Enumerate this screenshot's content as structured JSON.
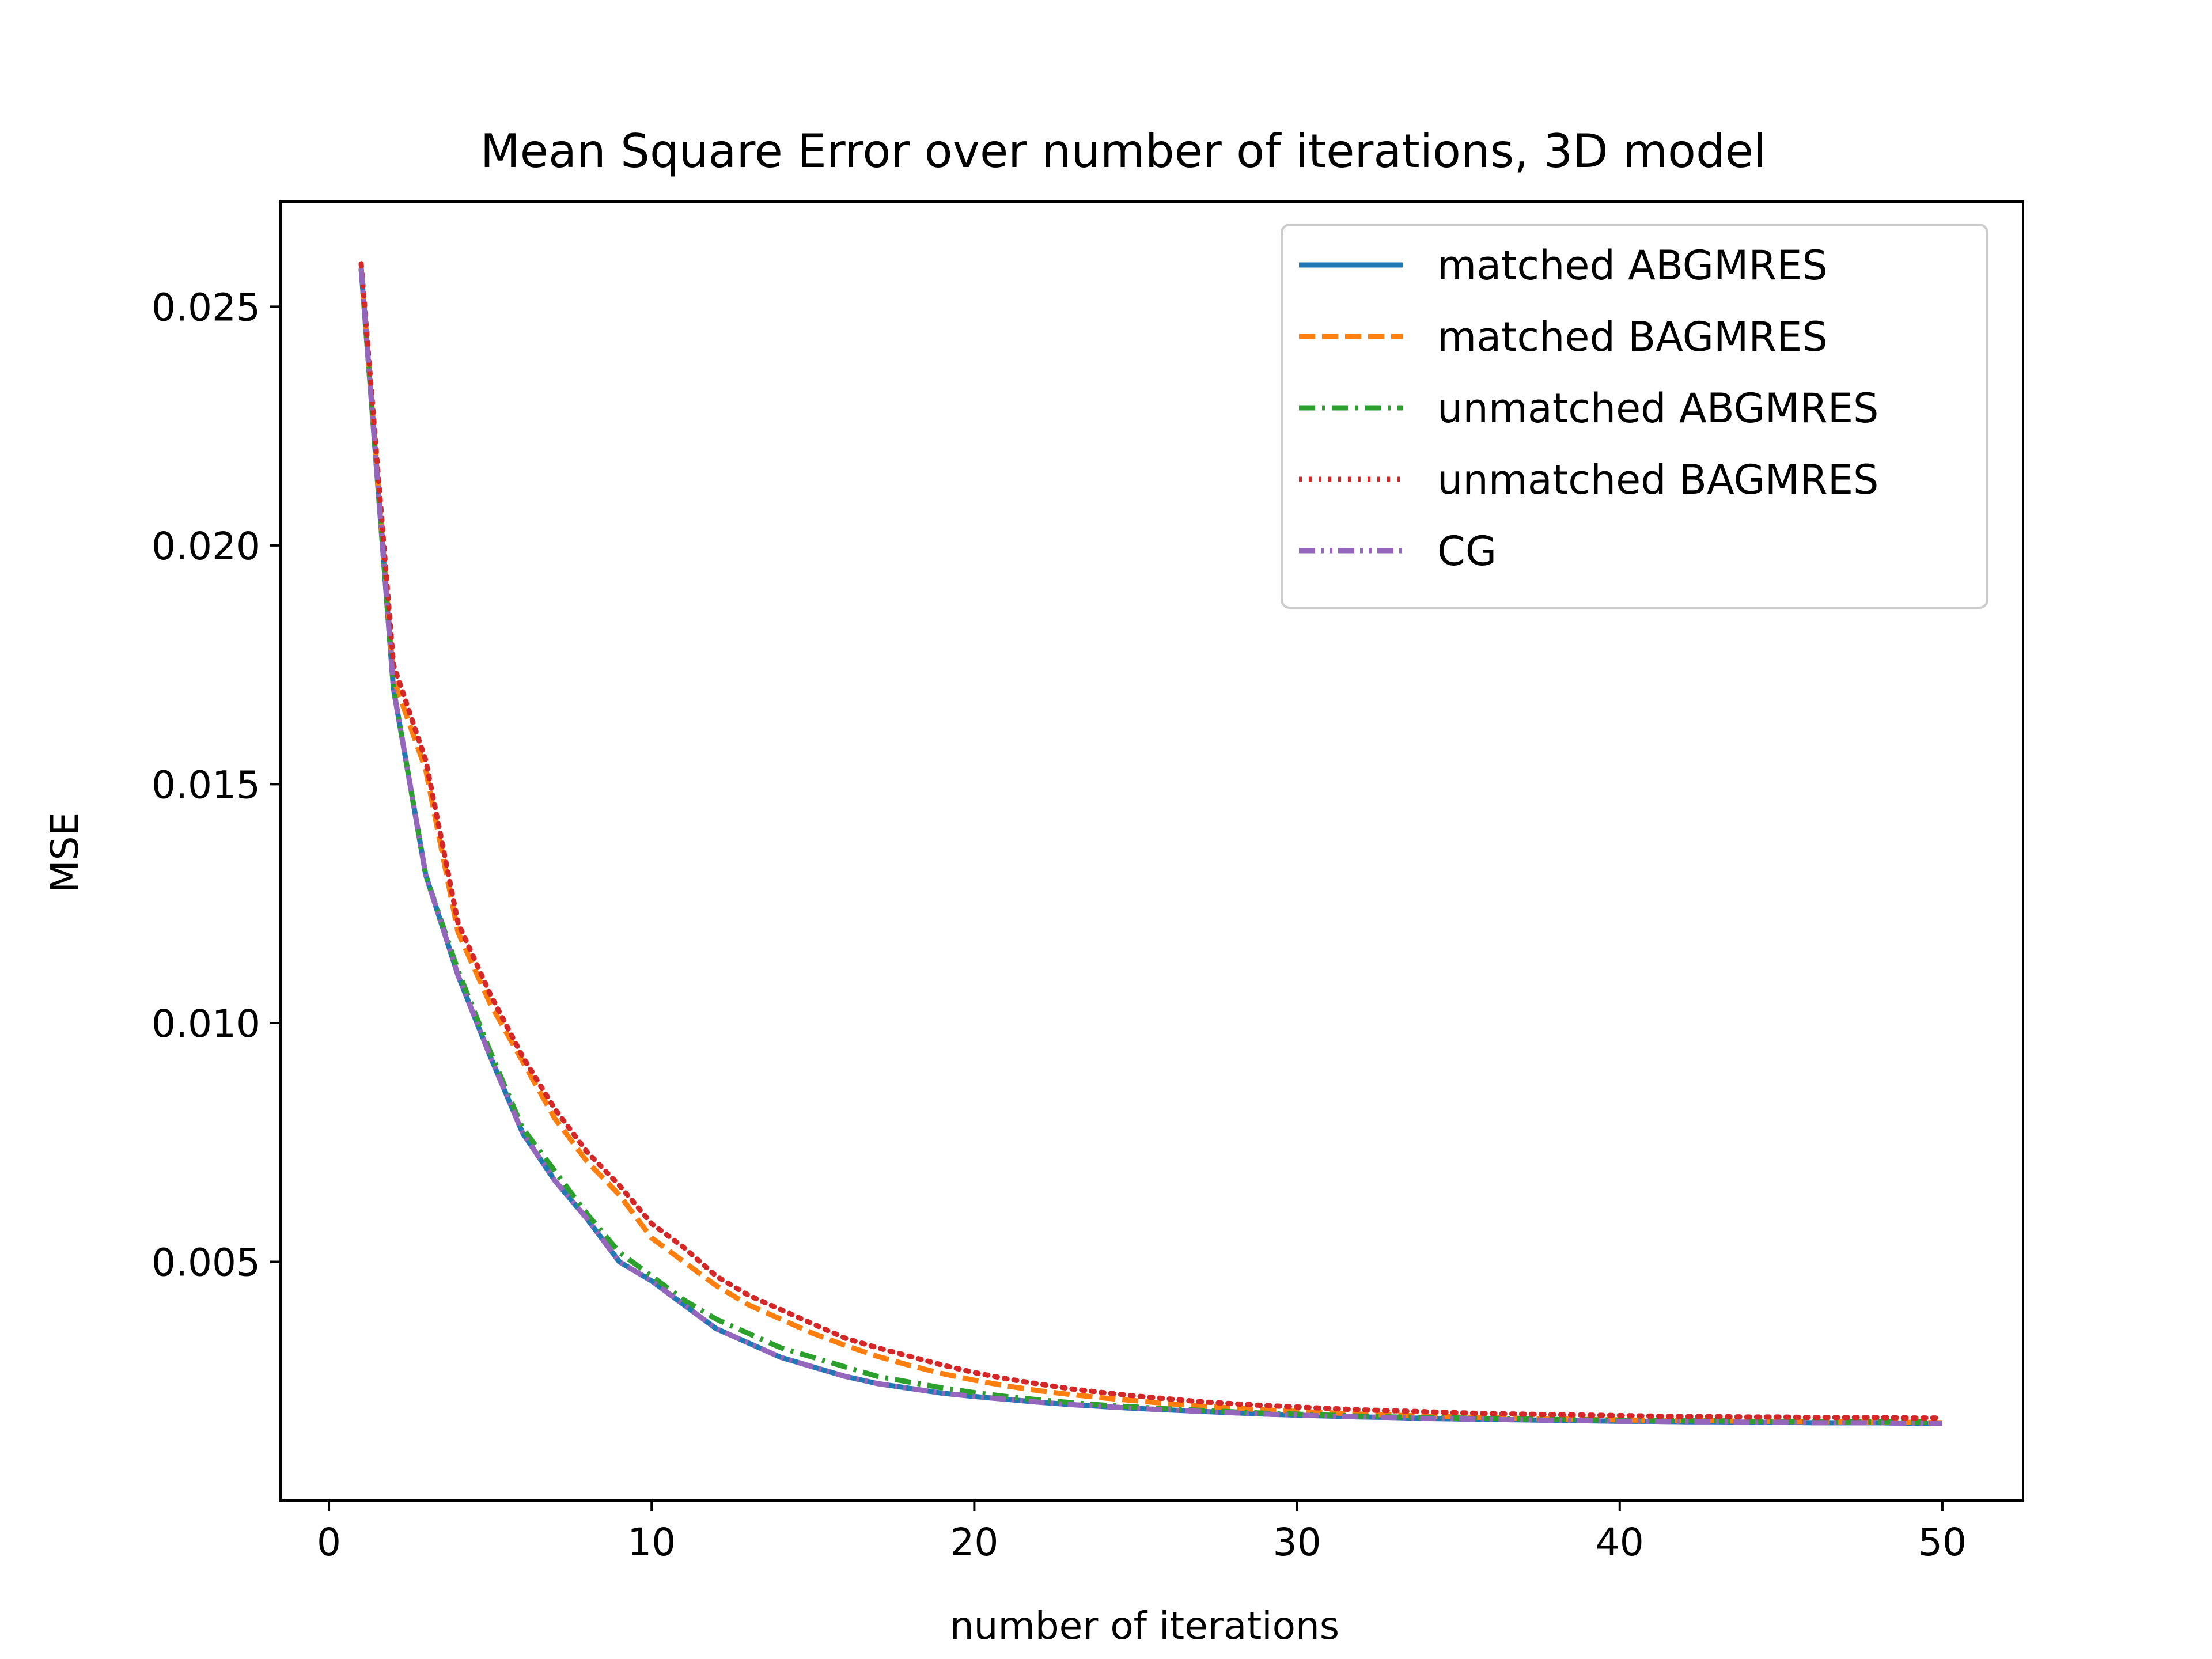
{
  "chart_data": {
    "type": "line",
    "title": "Mean Square Error over number of iterations, 3D model",
    "xlabel": "number of iterations",
    "ylabel": "MSE",
    "xlim": [
      -1.5,
      52.5
    ],
    "ylim": [
      0.0,
      0.0272
    ],
    "xticks": [
      0,
      10,
      20,
      30,
      40,
      50
    ],
    "xtick_labels": [
      "0",
      "10",
      "20",
      "30",
      "40",
      "50"
    ],
    "yticks": [
      0.005,
      0.01,
      0.015,
      0.02,
      0.025
    ],
    "ytick_labels": [
      "0.005",
      "0.010",
      "0.015",
      "0.020",
      "0.025"
    ],
    "grid": false,
    "legend_position": "top-right",
    "x": [
      1,
      2,
      3,
      4,
      5,
      6,
      7,
      8,
      9,
      10,
      11,
      12,
      13,
      14,
      15,
      16,
      17,
      18,
      19,
      20,
      21,
      22,
      23,
      24,
      25,
      26,
      27,
      28,
      29,
      30,
      31,
      32,
      33,
      34,
      35,
      36,
      37,
      38,
      39,
      40,
      41,
      42,
      43,
      44,
      45,
      46,
      47,
      48,
      49,
      50
    ],
    "series": [
      {
        "name": "matched ABGMRES",
        "color": "#1f77b4",
        "dash": "solid",
        "values": [
          0.0258,
          0.017,
          0.0131,
          0.011,
          0.0093,
          0.0077,
          0.0067,
          0.0059,
          0.005,
          0.0046,
          0.0041,
          0.0036,
          0.0033,
          0.003,
          0.0028,
          0.0026,
          0.00245,
          0.00235,
          0.00225,
          0.00218,
          0.00212,
          0.00206,
          0.00201,
          0.00197,
          0.00193,
          0.0019,
          0.00187,
          0.00184,
          0.00181,
          0.00179,
          0.00177,
          0.00175,
          0.00174,
          0.00172,
          0.00171,
          0.0017,
          0.00169,
          0.00168,
          0.00167,
          0.00166,
          0.00166,
          0.00165,
          0.00165,
          0.00164,
          0.00164,
          0.00163,
          0.00163,
          0.00163,
          0.00162,
          0.00162
        ]
      },
      {
        "name": "matched BAGMRES",
        "color": "#ff7f0e",
        "dash": "dashed",
        "values": [
          0.0258,
          0.0172,
          0.0153,
          0.0119,
          0.0104,
          0.0092,
          0.008,
          0.0071,
          0.0064,
          0.0055,
          0.005,
          0.0045,
          0.0041,
          0.0038,
          0.0035,
          0.00325,
          0.00302,
          0.00283,
          0.00266,
          0.00252,
          0.0024,
          0.0023,
          0.00222,
          0.00215,
          0.00209,
          0.00203,
          0.00198,
          0.00194,
          0.0019,
          0.00187,
          0.00184,
          0.00181,
          0.00179,
          0.00177,
          0.00175,
          0.00174,
          0.00172,
          0.00171,
          0.0017,
          0.00169,
          0.00168,
          0.00167,
          0.00167,
          0.00166,
          0.00166,
          0.00165,
          0.00165,
          0.00164,
          0.00164,
          0.00163
        ]
      },
      {
        "name": "unmatched ABGMRES",
        "color": "#2ca02c",
        "dash": "dashdot",
        "values": [
          0.0258,
          0.017,
          0.0131,
          0.0111,
          0.0094,
          0.0078,
          0.0069,
          0.006,
          0.0052,
          0.0047,
          0.0042,
          0.0038,
          0.0035,
          0.0032,
          0.003,
          0.0028,
          0.0026,
          0.00248,
          0.00236,
          0.00226,
          0.00218,
          0.00211,
          0.00205,
          0.002,
          0.00196,
          0.00192,
          0.00189,
          0.00186,
          0.00183,
          0.00181,
          0.00179,
          0.00177,
          0.00175,
          0.00174,
          0.00173,
          0.00172,
          0.00171,
          0.0017,
          0.00169,
          0.00168,
          0.00168,
          0.00167,
          0.00167,
          0.00166,
          0.00166,
          0.00166,
          0.00165,
          0.00165,
          0.00165,
          0.00164
        ]
      },
      {
        "name": "unmatched BAGMRES",
        "color": "#d62728",
        "dash": "dotted",
        "values": [
          0.0259,
          0.0175,
          0.0155,
          0.0121,
          0.0106,
          0.0093,
          0.0082,
          0.0073,
          0.0066,
          0.0058,
          0.0053,
          0.0047,
          0.0043,
          0.004,
          0.0037,
          0.0034,
          0.0032,
          0.00302,
          0.00284,
          0.00268,
          0.00255,
          0.00244,
          0.00234,
          0.00226,
          0.00219,
          0.00213,
          0.00207,
          0.00203,
          0.00199,
          0.00196,
          0.00193,
          0.0019,
          0.00188,
          0.00186,
          0.00184,
          0.00182,
          0.00181,
          0.0018,
          0.00179,
          0.00178,
          0.00177,
          0.00176,
          0.00176,
          0.00175,
          0.00175,
          0.00174,
          0.00174,
          0.00174,
          0.00173,
          0.00173
        ]
      },
      {
        "name": "CG",
        "color": "#9467bd",
        "dash": "dashdotdot",
        "values": [
          0.0258,
          0.017,
          0.0131,
          0.011,
          0.0093,
          0.0077,
          0.0067,
          0.0059,
          0.005,
          0.0046,
          0.0041,
          0.0036,
          0.0033,
          0.003,
          0.0028,
          0.0026,
          0.00245,
          0.00235,
          0.00225,
          0.00218,
          0.00212,
          0.00206,
          0.00201,
          0.00197,
          0.00193,
          0.0019,
          0.00187,
          0.00184,
          0.00181,
          0.00179,
          0.00177,
          0.00175,
          0.00174,
          0.00172,
          0.00171,
          0.0017,
          0.00169,
          0.00168,
          0.00167,
          0.00166,
          0.00166,
          0.00165,
          0.00165,
          0.00164,
          0.00164,
          0.00163,
          0.00163,
          0.00163,
          0.00162,
          0.00162
        ]
      }
    ]
  }
}
